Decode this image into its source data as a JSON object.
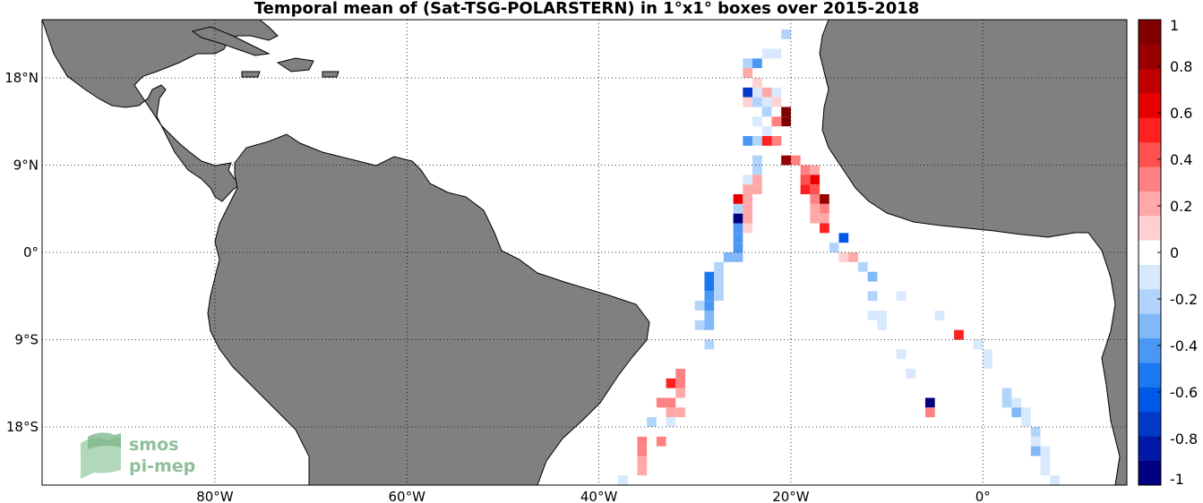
{
  "title": "Temporal mean of (Sat-TSG-POLARSTERN) in 1°x1° boxes over 2015-2018",
  "map": {
    "lon_range": [
      -98,
      15
    ],
    "lat_range": [
      -24,
      24
    ],
    "land_color": "#808080",
    "ocean_color": "#ffffff",
    "lon_ticks": [
      {
        "value": -80,
        "label": "80°W"
      },
      {
        "value": -60,
        "label": "60°W"
      },
      {
        "value": -40,
        "label": "40°W"
      },
      {
        "value": -20,
        "label": "20°W"
      },
      {
        "value": 0,
        "label": "0°"
      }
    ],
    "lat_ticks": [
      {
        "value": 18,
        "label": "18°N"
      },
      {
        "value": 9,
        "label": "9°N"
      },
      {
        "value": 0,
        "label": "0°"
      },
      {
        "value": -9,
        "label": "9°S"
      },
      {
        "value": -18,
        "label": "18°S"
      }
    ]
  },
  "colorbar": {
    "min": -1,
    "max": 1,
    "colors": [
      "#000080",
      "#0018a8",
      "#0038c8",
      "#0058e8",
      "#1a78f0",
      "#4a98f4",
      "#80b8f8",
      "#b0d4fb",
      "#d8e8fd",
      "#ffffff",
      "#ffd0d0",
      "#ffa8a8",
      "#ff8080",
      "#ff5050",
      "#ff2020",
      "#e80000",
      "#c00000",
      "#980000",
      "#800000"
    ],
    "tick_labels": [
      {
        "value": 1,
        "label": "1"
      },
      {
        "value": 0.8,
        "label": "0.8"
      },
      {
        "value": 0.6,
        "label": "0.6"
      },
      {
        "value": 0.4,
        "label": "0.4"
      },
      {
        "value": 0.2,
        "label": "0.2"
      },
      {
        "value": 0,
        "label": "0"
      },
      {
        "value": -0.2,
        "label": "-0.2"
      },
      {
        "value": -0.4,
        "label": "-0.4"
      },
      {
        "value": -0.6,
        "label": "-0.6"
      },
      {
        "value": -0.8,
        "label": "-0.8"
      },
      {
        "value": -1,
        "label": "-1"
      }
    ]
  },
  "logo": {
    "line1": "smos",
    "line2": "pi-mep"
  },
  "chart_data": {
    "type": "heatmap",
    "title": "Temporal mean of (Sat-TSG-POLARSTERN) in 1°x1° boxes over 2015-2018",
    "xlim": [
      -98,
      15
    ],
    "ylim": [
      -24,
      24
    ],
    "cells": [
      {
        "lon": -20.5,
        "lat": 22.5,
        "v": -0.2
      },
      {
        "lon": -24.5,
        "lat": 19.5,
        "v": -0.25
      },
      {
        "lon": -23.5,
        "lat": 19.5,
        "v": -0.4
      },
      {
        "lon": -22.5,
        "lat": 20.5,
        "v": -0.1
      },
      {
        "lon": -21.5,
        "lat": 20.5,
        "v": -0.1
      },
      {
        "lon": -24.5,
        "lat": 18.5,
        "v": 0.2
      },
      {
        "lon": -23.5,
        "lat": 17.5,
        "v": 0.15
      },
      {
        "lon": -24.5,
        "lat": 16.5,
        "v": -0.7
      },
      {
        "lon": -23.5,
        "lat": 16.5,
        "v": -0.1
      },
      {
        "lon": -22.5,
        "lat": 16.5,
        "v": 0.2
      },
      {
        "lon": -21.5,
        "lat": 16.5,
        "v": -0.1
      },
      {
        "lon": -24.5,
        "lat": 15.5,
        "v": 0.15
      },
      {
        "lon": -23.5,
        "lat": 15.5,
        "v": -0.25
      },
      {
        "lon": -22.5,
        "lat": 15.5,
        "v": -0.1
      },
      {
        "lon": -21.5,
        "lat": 15.5,
        "v": 0.1
      },
      {
        "lon": -20.5,
        "lat": 14.5,
        "v": 0.95
      },
      {
        "lon": -20.5,
        "lat": 13.5,
        "v": 0.95
      },
      {
        "lon": -22.5,
        "lat": 14.5,
        "v": -0.2
      },
      {
        "lon": -21.5,
        "lat": 13.5,
        "v": 0.3
      },
      {
        "lon": -23.5,
        "lat": 13.5,
        "v": -0.1
      },
      {
        "lon": -22.5,
        "lat": 12.5,
        "v": -0.1
      },
      {
        "lon": -24.5,
        "lat": 11.5,
        "v": -0.4
      },
      {
        "lon": -23.5,
        "lat": 11.5,
        "v": -0.2
      },
      {
        "lon": -22.5,
        "lat": 11.5,
        "v": 0.5
      },
      {
        "lon": -21.5,
        "lat": 11.5,
        "v": 0.3
      },
      {
        "lon": -23.5,
        "lat": 9.5,
        "v": -0.25
      },
      {
        "lon": -23.5,
        "lat": 8.5,
        "v": -0.2
      },
      {
        "lon": -24.5,
        "lat": 7.5,
        "v": -0.1
      },
      {
        "lon": -23.5,
        "lat": 7.5,
        "v": 0.2
      },
      {
        "lon": -24.5,
        "lat": 6.5,
        "v": 0.2
      },
      {
        "lon": -23.5,
        "lat": 6.5,
        "v": 0.2
      },
      {
        "lon": -25.5,
        "lat": 5.5,
        "v": 0.65
      },
      {
        "lon": -24.5,
        "lat": 5.5,
        "v": 0.2
      },
      {
        "lon": -25.5,
        "lat": 4.5,
        "v": -0.2
      },
      {
        "lon": -24.5,
        "lat": 4.5,
        "v": 0.2
      },
      {
        "lon": -25.5,
        "lat": 3.5,
        "v": -0.9
      },
      {
        "lon": -24.5,
        "lat": 3.5,
        "v": 0.2
      },
      {
        "lon": -25.5,
        "lat": 2.5,
        "v": -0.45
      },
      {
        "lon": -24.5,
        "lat": 2.5,
        "v": 0.15
      },
      {
        "lon": -25.5,
        "lat": 1.5,
        "v": -0.45
      },
      {
        "lon": -25.5,
        "lat": 0.5,
        "v": -0.45
      },
      {
        "lon": -26.5,
        "lat": -0.5,
        "v": -0.3
      },
      {
        "lon": -25.5,
        "lat": -0.5,
        "v": -0.3
      },
      {
        "lon": -27.5,
        "lat": -1.5,
        "v": -0.2
      },
      {
        "lon": -28.5,
        "lat": -2.5,
        "v": -0.5
      },
      {
        "lon": -27.5,
        "lat": -2.5,
        "v": -0.2
      },
      {
        "lon": -28.5,
        "lat": -3.5,
        "v": -0.5
      },
      {
        "lon": -27.5,
        "lat": -3.5,
        "v": -0.2
      },
      {
        "lon": -28.5,
        "lat": -4.5,
        "v": -0.45
      },
      {
        "lon": -27.5,
        "lat": -4.5,
        "v": -0.2
      },
      {
        "lon": -28.5,
        "lat": -5.5,
        "v": -0.45
      },
      {
        "lon": -29.5,
        "lat": -5.5,
        "v": -0.2
      },
      {
        "lon": -28.5,
        "lat": -6.5,
        "v": -0.3
      },
      {
        "lon": -29.5,
        "lat": -7.5,
        "v": -0.2
      },
      {
        "lon": -28.5,
        "lat": -7.5,
        "v": -0.3
      },
      {
        "lon": -28.5,
        "lat": -9.5,
        "v": -0.2
      },
      {
        "lon": -20.5,
        "lat": 9.5,
        "v": 0.8
      },
      {
        "lon": -19.5,
        "lat": 9.5,
        "v": 0.3
      },
      {
        "lon": -18.5,
        "lat": 8.5,
        "v": 0.3
      },
      {
        "lon": -17.5,
        "lat": 8.5,
        "v": 0.2
      },
      {
        "lon": -17.5,
        "lat": 7.5,
        "v": 0.65
      },
      {
        "lon": -18.5,
        "lat": 7.5,
        "v": 0.4
      },
      {
        "lon": -18.5,
        "lat": 6.5,
        "v": 0.5
      },
      {
        "lon": -17.5,
        "lat": 6.5,
        "v": 0.4
      },
      {
        "lon": -16.5,
        "lat": 5.5,
        "v": 0.85
      },
      {
        "lon": -17.5,
        "lat": 5.5,
        "v": 0.3
      },
      {
        "lon": -16.5,
        "lat": 4.5,
        "v": 0.3
      },
      {
        "lon": -17.5,
        "lat": 4.5,
        "v": 0.2
      },
      {
        "lon": -16.5,
        "lat": 3.5,
        "v": 0.25
      },
      {
        "lon": -17.5,
        "lat": 3.5,
        "v": 0.2
      },
      {
        "lon": -16.5,
        "lat": 2.5,
        "v": 0.5
      },
      {
        "lon": -14.5,
        "lat": 1.5,
        "v": -0.6
      },
      {
        "lon": -15.5,
        "lat": 0.5,
        "v": -0.2
      },
      {
        "lon": -14.5,
        "lat": -0.5,
        "v": 0.15
      },
      {
        "lon": -13.5,
        "lat": -0.5,
        "v": 0.2
      },
      {
        "lon": -12.5,
        "lat": -1.5,
        "v": -0.2
      },
      {
        "lon": -11.5,
        "lat": -2.5,
        "v": -0.3
      },
      {
        "lon": -11.5,
        "lat": -4.5,
        "v": -0.25
      },
      {
        "lon": -8.5,
        "lat": -4.5,
        "v": -0.15
      },
      {
        "lon": -10.5,
        "lat": -6.5,
        "v": -0.15
      },
      {
        "lon": -11.5,
        "lat": -6.5,
        "v": -0.15
      },
      {
        "lon": -10.5,
        "lat": -7.5,
        "v": -0.15
      },
      {
        "lon": -4.5,
        "lat": -6.5,
        "v": -0.15
      },
      {
        "lon": -2.5,
        "lat": -8.5,
        "v": 0.5
      },
      {
        "lon": -8.5,
        "lat": -10.5,
        "v": -0.15
      },
      {
        "lon": -7.5,
        "lat": -12.5,
        "v": -0.15
      },
      {
        "lon": -5.5,
        "lat": -15.5,
        "v": -0.95
      },
      {
        "lon": -5.5,
        "lat": -16.5,
        "v": 0.3
      },
      {
        "lon": -0.5,
        "lat": -9.5,
        "v": -0.15
      },
      {
        "lon": 0.5,
        "lat": -10.5,
        "v": -0.15
      },
      {
        "lon": 0.5,
        "lat": -11.5,
        "v": -0.15
      },
      {
        "lon": 2.5,
        "lat": -14.5,
        "v": -0.2
      },
      {
        "lon": 2.5,
        "lat": -15.5,
        "v": -0.2
      },
      {
        "lon": 3.5,
        "lat": -15.5,
        "v": -0.15
      },
      {
        "lon": 3.5,
        "lat": -16.5,
        "v": -0.3
      },
      {
        "lon": 4.5,
        "lat": -16.5,
        "v": -0.15
      },
      {
        "lon": 4.5,
        "lat": -17.5,
        "v": -0.15
      },
      {
        "lon": 5.5,
        "lat": -18.5,
        "v": -0.2
      },
      {
        "lon": 5.5,
        "lat": -19.5,
        "v": -0.15
      },
      {
        "lon": 5.5,
        "lat": -20.5,
        "v": -0.3
      },
      {
        "lon": 6.5,
        "lat": -20.5,
        "v": -0.15
      },
      {
        "lon": 6.5,
        "lat": -21.5,
        "v": -0.15
      },
      {
        "lon": 6.5,
        "lat": -22.5,
        "v": -0.15
      },
      {
        "lon": 7.5,
        "lat": -23.5,
        "v": -0.15
      },
      {
        "lon": -31.5,
        "lat": -12.5,
        "v": 0.3
      },
      {
        "lon": -32.5,
        "lat": -13.5,
        "v": 0.55
      },
      {
        "lon": -31.5,
        "lat": -13.5,
        "v": 0.3
      },
      {
        "lon": -31.5,
        "lat": -14.5,
        "v": 0.2
      },
      {
        "lon": -32.5,
        "lat": -15.5,
        "v": 0.3
      },
      {
        "lon": -33.5,
        "lat": -15.5,
        "v": 0.3
      },
      {
        "lon": -31.5,
        "lat": -16.5,
        "v": 0.2
      },
      {
        "lon": -32.5,
        "lat": -16.5,
        "v": 0.2
      },
      {
        "lon": -32.5,
        "lat": -17.5,
        "v": -0.15
      },
      {
        "lon": -34.5,
        "lat": -17.5,
        "v": -0.2
      },
      {
        "lon": -35.5,
        "lat": -19.5,
        "v": 0.3
      },
      {
        "lon": -33.5,
        "lat": -19.5,
        "v": 0.3
      },
      {
        "lon": -35.5,
        "lat": -20.5,
        "v": 0.3
      },
      {
        "lon": -35.5,
        "lat": -21.5,
        "v": 0.2
      },
      {
        "lon": -35.5,
        "lat": -22.5,
        "v": 0.2
      },
      {
        "lon": -37.5,
        "lat": -23.5,
        "v": -0.15
      }
    ]
  }
}
